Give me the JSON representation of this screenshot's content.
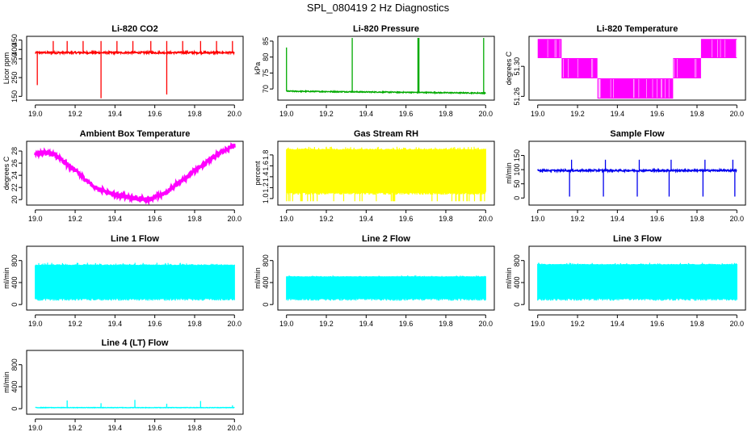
{
  "page_title": "SPL_080419  2 Hz Diagnostics",
  "chart_data": [
    {
      "type": "line",
      "title": "Li-820 CO2",
      "ylabel": "Licor ppm",
      "color": "#ff0000",
      "xlim": [
        19.0,
        20.0
      ],
      "ylim": [
        130,
        470
      ],
      "x_ticks": [
        "19.0",
        "19.2",
        "19.4",
        "19.6",
        "19.8",
        "20.0"
      ],
      "y_ticks": [
        150,
        250,
        350,
        400,
        450
      ],
      "series": [
        {
          "style": "noisy_flat",
          "base": 383,
          "noise": 5,
          "spikes": [
            {
              "x": 19.01,
              "y": 210
            },
            {
              "x": 19.09,
              "y": 445
            },
            {
              "x": 19.16,
              "y": 445
            },
            {
              "x": 19.24,
              "y": 445
            },
            {
              "x": 19.33,
              "y": 140
            },
            {
              "x": 19.33,
              "y": 445
            },
            {
              "x": 19.41,
              "y": 445
            },
            {
              "x": 19.49,
              "y": 445
            },
            {
              "x": 19.58,
              "y": 445
            },
            {
              "x": 19.66,
              "y": 160
            },
            {
              "x": 19.66,
              "y": 445
            },
            {
              "x": 19.74,
              "y": 445
            },
            {
              "x": 19.83,
              "y": 445
            },
            {
              "x": 19.91,
              "y": 445
            },
            {
              "x": 19.99,
              "y": 445
            }
          ]
        }
      ]
    },
    {
      "type": "line",
      "title": "Li-820 Pressure",
      "ylabel": "kPa",
      "color": "#00aa00",
      "xlim": [
        19.0,
        20.0
      ],
      "ylim": [
        66.5,
        86.5
      ],
      "x_ticks": [
        "19.0",
        "19.2",
        "19.4",
        "19.6",
        "19.8",
        "20.0"
      ],
      "y_ticks": [
        70,
        75,
        80,
        85
      ],
      "series": [
        {
          "style": "drift",
          "start": 69.3,
          "end": 68.7,
          "noise": 0.15,
          "spikes": [
            {
              "x": 19.0,
              "y": 83
            },
            {
              "x": 19.33,
              "y": 86
            },
            {
              "x": 19.66,
              "y": 86
            },
            {
              "x": 19.665,
              "y": 86
            },
            {
              "x": 19.99,
              "y": 86
            }
          ]
        }
      ]
    },
    {
      "type": "step",
      "title": "Li-820 Temperature",
      "ylabel": "degrees C",
      "color": "#ff00ff",
      "xlim": [
        19.0,
        20.0
      ],
      "ylim": [
        51.255,
        51.34
      ],
      "x_ticks": [
        "19.0",
        "19.2",
        "19.4",
        "19.6",
        "19.8",
        "20.0"
      ],
      "y_ticks": [
        "51.26",
        "51.30"
      ],
      "series": [
        {
          "levels": [
            {
              "x0": 19.0,
              "x1": 19.12,
              "lo": 51.311,
              "hi": 51.3365
            },
            {
              "x0": 19.12,
              "x1": 19.3,
              "lo": 51.284,
              "hi": 51.311
            },
            {
              "x0": 19.3,
              "x1": 19.68,
              "lo": 51.257,
              "hi": 51.284
            },
            {
              "x0": 19.68,
              "x1": 19.82,
              "lo": 51.284,
              "hi": 51.311
            },
            {
              "x0": 19.82,
              "x1": 20.0,
              "lo": 51.311,
              "hi": 51.3365
            }
          ]
        }
      ]
    },
    {
      "type": "line",
      "title": "Ambient Box Temperature",
      "ylabel": "degrees C",
      "color": "#ff00ff",
      "xlim": [
        19.0,
        20.0
      ],
      "ylim": [
        19.1,
        29.6
      ],
      "x_ticks": [
        "19.0",
        "19.2",
        "19.4",
        "19.6",
        "19.8",
        "20.0"
      ],
      "y_ticks": [
        20,
        22,
        24,
        26,
        28
      ],
      "series": [
        {
          "style": "curve",
          "noise": 0.35,
          "points": [
            [
              19.0,
              27.6
            ],
            [
              19.05,
              27.8
            ],
            [
              19.1,
              27.3
            ],
            [
              19.2,
              24.8
            ],
            [
              19.3,
              22.0
            ],
            [
              19.4,
              20.8
            ],
            [
              19.5,
              20.2
            ],
            [
              19.57,
              20.0
            ],
            [
              19.65,
              21.0
            ],
            [
              19.75,
              23.5
            ],
            [
              19.85,
              25.9
            ],
            [
              19.93,
              27.8
            ],
            [
              20.0,
              28.9
            ]
          ]
        }
      ]
    },
    {
      "type": "band",
      "title": "Gas Stream RH",
      "ylabel": "percent",
      "color": "#ffff00",
      "xlim": [
        19.0,
        20.0
      ],
      "ylim": [
        0.88,
        2.05
      ],
      "x_ticks": [
        "19.0",
        "19.2",
        "19.4",
        "19.6",
        "19.8",
        "20.0"
      ],
      "y_ticks": [
        "1.0",
        "1.2",
        "1.4",
        "1.6",
        "1.8"
      ],
      "series": [
        {
          "top": 1.9,
          "bottom": 1.1,
          "min": 0.95,
          "max": 1.95
        }
      ]
    },
    {
      "type": "line",
      "title": "Sample Flow",
      "ylabel": "ml/min",
      "color": "#0000ee",
      "xlim": [
        19.0,
        20.0
      ],
      "ylim": [
        -25,
        200
      ],
      "x_ticks": [
        "19.0",
        "19.2",
        "19.4",
        "19.6",
        "19.8",
        "20.0"
      ],
      "y_ticks": [
        0,
        50,
        100,
        150
      ],
      "series": [
        {
          "style": "noisy_flat",
          "base": 97,
          "noise": 3,
          "spikes": [
            {
              "x": 19.16,
              "y": 5
            },
            {
              "x": 19.33,
              "y": 5
            },
            {
              "x": 19.5,
              "y": 5
            },
            {
              "x": 19.66,
              "y": 5
            },
            {
              "x": 19.83,
              "y": 5
            },
            {
              "x": 19.99,
              "y": 5
            },
            {
              "x": 19.17,
              "y": 135
            },
            {
              "x": 19.34,
              "y": 135
            },
            {
              "x": 19.51,
              "y": 135
            },
            {
              "x": 19.67,
              "y": 135
            },
            {
              "x": 19.84,
              "y": 135
            },
            {
              "x": 19.98,
              "y": 135
            }
          ]
        }
      ]
    },
    {
      "type": "band",
      "title": "Line 1 Flow",
      "ylabel": "ml/min",
      "color": "#00ffff",
      "xlim": [
        19.0,
        20.0
      ],
      "ylim": [
        -100,
        1060
      ],
      "x_ticks": [
        "19.0",
        "19.2",
        "19.4",
        "19.6",
        "19.8",
        "20.0"
      ],
      "y_ticks": [
        0,
        400,
        800
      ],
      "series": [
        {
          "top": 720,
          "bottom": 100,
          "min": 100,
          "max": 760
        }
      ]
    },
    {
      "type": "band",
      "title": "Line 2 Flow",
      "ylabel": "ml/min",
      "color": "#00ffff",
      "xlim": [
        19.0,
        20.0
      ],
      "ylim": [
        -100,
        1060
      ],
      "x_ticks": [
        "19.0",
        "19.2",
        "19.4",
        "19.6",
        "19.8",
        "20.0"
      ],
      "y_ticks": [
        0,
        400,
        800
      ],
      "series": [
        {
          "top": 510,
          "bottom": 100,
          "min": 100,
          "max": 530
        }
      ]
    },
    {
      "type": "band",
      "title": "Line 3 Flow",
      "ylabel": "ml/min",
      "color": "#00ffff",
      "xlim": [
        19.0,
        20.0
      ],
      "ylim": [
        -100,
        1060
      ],
      "x_ticks": [
        "19.0",
        "19.2",
        "19.4",
        "19.6",
        "19.8",
        "20.0"
      ],
      "y_ticks": [
        0,
        400,
        800
      ],
      "series": [
        {
          "top": 730,
          "bottom": 100,
          "min": 100,
          "max": 760
        }
      ]
    },
    {
      "type": "line",
      "title": "Line 4 (LT) Flow",
      "ylabel": "ml/min",
      "color": "#00ffff",
      "xlim": [
        19.0,
        20.0
      ],
      "ylim": [
        -100,
        1060
      ],
      "x_ticks": [
        "19.0",
        "19.2",
        "19.4",
        "19.6",
        "19.8",
        "20.0"
      ],
      "y_ticks": [
        0,
        400,
        800
      ],
      "series": [
        {
          "style": "noisy_flat",
          "base": 20,
          "noise": 4,
          "spikes": [
            {
              "x": 19.16,
              "y": 150
            },
            {
              "x": 19.33,
              "y": 100
            },
            {
              "x": 19.5,
              "y": 160
            },
            {
              "x": 19.66,
              "y": 90
            },
            {
              "x": 19.83,
              "y": 140
            },
            {
              "x": 19.99,
              "y": 60
            }
          ]
        }
      ]
    }
  ]
}
